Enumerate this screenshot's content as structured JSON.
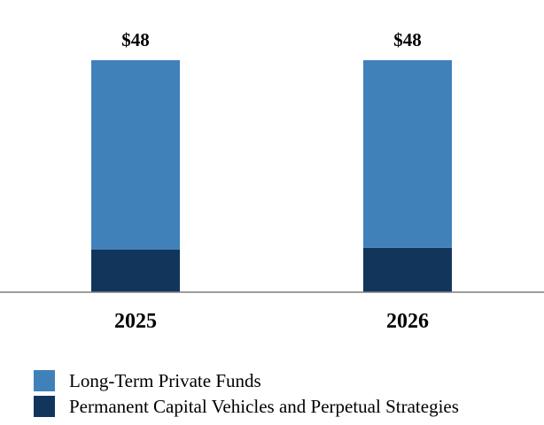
{
  "chart_data": {
    "type": "bar",
    "stacked": true,
    "categories": [
      "2025",
      "2026"
    ],
    "totals": [
      "$48",
      "$48"
    ],
    "series": [
      {
        "name": "Permanent Capital Vehicles and Perpetual Strategies",
        "values": [
          8.8,
          9.2
        ],
        "color": "#12365b"
      },
      {
        "name": "Long-Term Private Funds",
        "values": [
          39.2,
          38.8
        ],
        "color": "#4081ba"
      }
    ],
    "ylim": [
      0,
      48
    ],
    "grid": false,
    "legend_position": "bottom-left",
    "title": "",
    "xlabel": "",
    "ylabel": ""
  },
  "legend": {
    "items": [
      {
        "label": "Long-Term Private Funds",
        "color": "#4081ba"
      },
      {
        "label": "Permanent Capital Vehicles and Perpetual Strategies",
        "color": "#12365b"
      }
    ]
  },
  "colors": {
    "axis": "#7f7f7f"
  }
}
